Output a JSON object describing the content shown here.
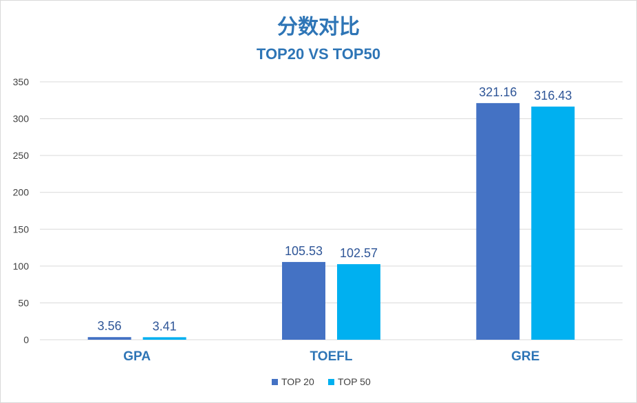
{
  "chart_data": {
    "type": "bar",
    "title": "分数对比",
    "subtitle": "TOP20 VS TOP50",
    "categories": [
      "GPA",
      "TOEFL",
      "GRE"
    ],
    "series": [
      {
        "name": "TOP 20",
        "values": [
          3.56,
          105.53,
          321.16
        ],
        "color": "#4472c4"
      },
      {
        "name": "TOP 50",
        "values": [
          3.41,
          102.57,
          316.43
        ],
        "color": "#00b0f0"
      }
    ],
    "value_labels": [
      [
        "3.56",
        "105.53",
        "321.16"
      ],
      [
        "3.41",
        "102.57",
        "316.43"
      ]
    ],
    "ylim": [
      0,
      350
    ],
    "y_ticks": [
      0,
      50,
      100,
      150,
      200,
      250,
      300,
      350
    ],
    "grid": true,
    "legend": "bottom",
    "accent_color": "#2e75b6"
  }
}
